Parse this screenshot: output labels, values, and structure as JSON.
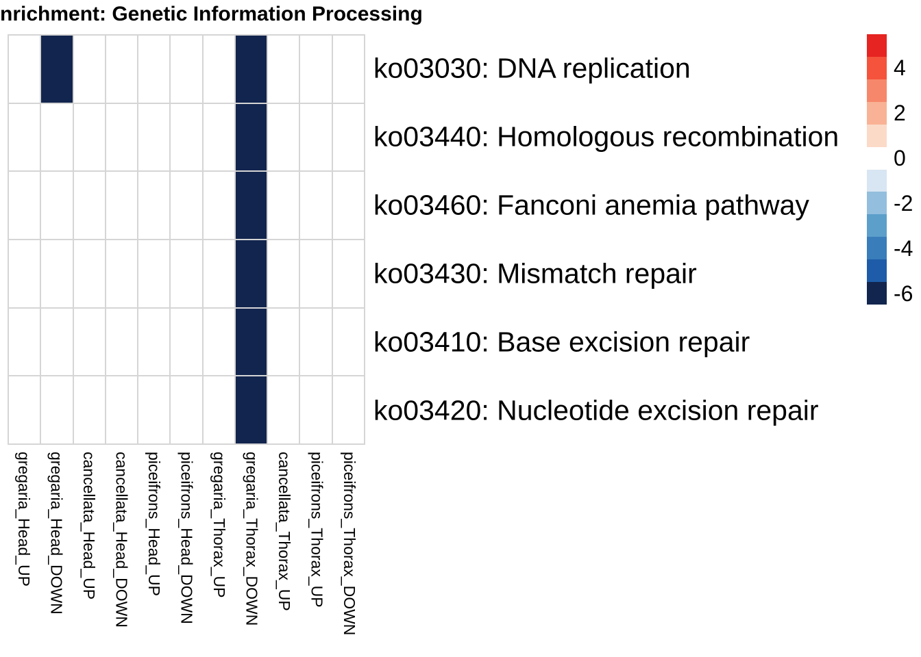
{
  "chart_data": {
    "type": "heatmap",
    "title": "nrichment: Genetic Information Processing",
    "xlabel": "",
    "ylabel": "",
    "rows": [
      "ko03030: DNA replication",
      "ko03440: Homologous recombination",
      "ko03460: Fanconi anemia pathway",
      "ko03430: Mismatch repair",
      "ko03410: Base excision repair",
      "ko03420: Nucleotide excision repair"
    ],
    "columns": [
      "gregaria_Head_UP",
      "gregaria_Head_DOWN",
      "cancellata_Head_UP",
      "cancellata_Head_DOWN",
      "piceifrons_Head_UP",
      "piceifrons_Head_DOWN",
      "gregaria_Thorax_UP",
      "gregaria_Thorax_DOWN",
      "cancellata_Thorax_UP",
      "piceifrons_Thorax_UP",
      "piceifrons_Thorax_DOWN"
    ],
    "values": [
      [
        null,
        -6,
        null,
        null,
        null,
        null,
        null,
        -6,
        null,
        null,
        null
      ],
      [
        null,
        null,
        null,
        null,
        null,
        null,
        null,
        -6,
        null,
        null,
        null
      ],
      [
        null,
        null,
        null,
        null,
        null,
        null,
        null,
        -6,
        null,
        null,
        null
      ],
      [
        null,
        null,
        null,
        null,
        null,
        null,
        null,
        -6,
        null,
        null,
        null
      ],
      [
        null,
        null,
        null,
        null,
        null,
        null,
        null,
        -6,
        null,
        null,
        null
      ],
      [
        null,
        null,
        null,
        null,
        null,
        null,
        null,
        -6,
        null,
        null,
        null
      ]
    ],
    "na_color": "#ffffff",
    "cell_fill_color": "#12254e",
    "gridline_color": "#d5d5d5",
    "value_range": [
      -6.5,
      5.5
    ],
    "legend_position": "right",
    "legend": {
      "bins": [
        {
          "value": 5,
          "color": "#e62421"
        },
        {
          "value": 4,
          "color": "#f5533c"
        },
        {
          "value": 3,
          "color": "#f7876a"
        },
        {
          "value": 2,
          "color": "#f9b295"
        },
        {
          "value": 1,
          "color": "#fcdac8"
        },
        {
          "value": 0,
          "color": "#ffffff"
        },
        {
          "value": -1,
          "color": "#d8e5f2"
        },
        {
          "value": -2,
          "color": "#93bedd"
        },
        {
          "value": -3,
          "color": "#5c9fcb"
        },
        {
          "value": -4,
          "color": "#397dba"
        },
        {
          "value": -5,
          "color": "#1e5ca9"
        },
        {
          "value": -6,
          "color": "#12254e"
        }
      ],
      "ticks": [
        {
          "label": "4",
          "value": 4
        },
        {
          "label": "2",
          "value": 2
        },
        {
          "label": "0",
          "value": 0
        },
        {
          "label": "-2",
          "value": -2
        },
        {
          "label": "-4",
          "value": -4
        },
        {
          "label": "-6",
          "value": -6
        }
      ]
    }
  }
}
